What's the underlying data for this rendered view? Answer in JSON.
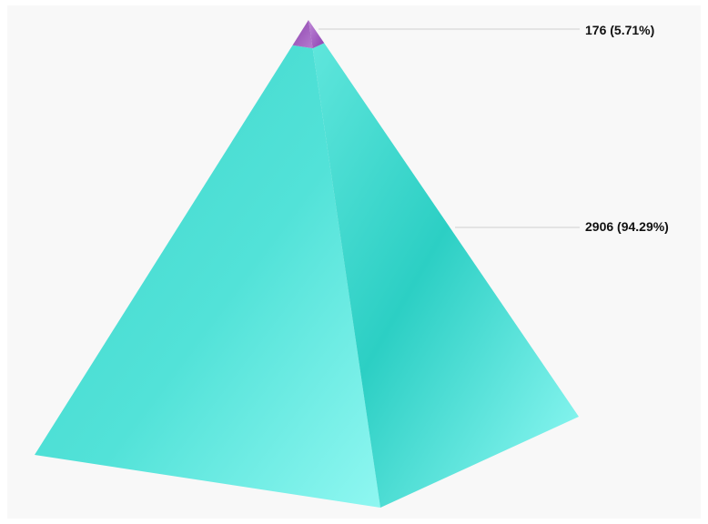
{
  "chart_data": {
    "type": "pyramid",
    "title": "",
    "series": [
      {
        "values": [
          176,
          2906
        ],
        "percents": [
          "5.71%",
          "94.29%"
        ],
        "labels": [
          "176 (5.71%)",
          "2906 (94.29%)"
        ]
      }
    ],
    "colors": [
      "#9b59b6",
      "#40e0d0"
    ],
    "legend": "none",
    "grid": false
  },
  "labels": {
    "top": "176 (5.71%)",
    "bottom": "2906 (94.29%)"
  }
}
